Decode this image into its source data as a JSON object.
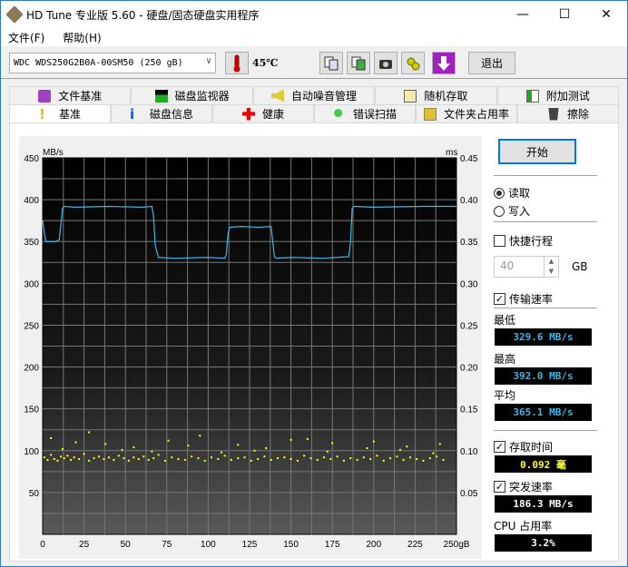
{
  "window": {
    "title": "HD Tune 专业版 5.60 - 硬盘/固态硬盘实用程序",
    "minimize": "—",
    "maximize": "☐",
    "close": "✕"
  },
  "menu": [
    "文件(F)",
    "帮助(H)"
  ],
  "toolbar": {
    "drive": "WDC WDS250G2B0A-00SM50 (250 gB)",
    "temperature": "45℃",
    "exit": "退出",
    "icons": [
      "copy-text-icon",
      "copy-image-icon",
      "camera-icon",
      "settings-icon",
      "download-icon"
    ]
  },
  "tabs": {
    "row1": [
      "文件基准",
      "磁盘监视器",
      "自动噪音管理",
      "随机存取",
      "附加测试"
    ],
    "row2": [
      "基准",
      "磁盘信息",
      "健康",
      "错误扫描",
      "文件夹占用率",
      "擦除"
    ],
    "active": "基准"
  },
  "side": {
    "start": "开始",
    "read": "读取",
    "write": "写入",
    "mode_selected": "read",
    "quick": "快捷行程",
    "quick_checked": false,
    "quick_value": "40",
    "quick_unit": "GB",
    "transfer": "传输速率",
    "transfer_checked": true,
    "min_label": "最低",
    "min": "329.6 MB/s",
    "max_label": "最高",
    "max": "392.0 MB/s",
    "avg_label": "平均",
    "avg": "365.1 MB/s",
    "access": "存取时间",
    "access_checked": true,
    "access_value": "0.092 毫",
    "burst": "突发速率",
    "burst_checked": true,
    "burst_value": "186.3 MB/s",
    "cpu_label": "CPU 占用率",
    "cpu_value": "3.2%"
  },
  "colors": {
    "line": "#3fb6e8",
    "scatter": "#ffff00",
    "value_blue": "#3fb6e8",
    "value_yellow": "#ffff33"
  },
  "chart_data": {
    "type": "line",
    "left_unit": "MB/s",
    "right_unit": "ms",
    "x_unit": "gB",
    "xlim": [
      0,
      250
    ],
    "ylim": [
      0,
      450
    ],
    "y2lim": [
      0,
      0.45
    ],
    "x_ticks": [
      0,
      25,
      50,
      75,
      100,
      125,
      150,
      175,
      200,
      225,
      250
    ],
    "y_ticks": [
      50,
      100,
      150,
      200,
      250,
      300,
      350,
      400,
      450
    ],
    "y2_ticks": [
      "0.05",
      "0.10",
      "0.15",
      "0.20",
      "0.25",
      "0.30",
      "0.35",
      "0.40",
      "0.45"
    ],
    "grid": true,
    "series": [
      {
        "axis": "left",
        "type": "line",
        "x": [
          0,
          1,
          2,
          4,
          8,
          10,
          11,
          12,
          13,
          20,
          40,
          60,
          66,
          67,
          68,
          70,
          80,
          100,
          110,
          111,
          112,
          113,
          120,
          130,
          138,
          139,
          140,
          141,
          150,
          170,
          185,
          186,
          187,
          188,
          200,
          230,
          250
        ],
        "y": [
          375,
          360,
          350,
          350,
          350,
          352,
          370,
          390,
          392,
          391,
          392,
          391,
          392,
          380,
          345,
          331,
          330,
          331,
          330,
          335,
          360,
          367,
          368,
          367,
          368,
          350,
          332,
          330,
          331,
          330,
          332,
          350,
          390,
          392,
          391,
          392,
          392
        ]
      },
      {
        "axis": "right",
        "type": "scatter",
        "x": [
          1,
          3,
          5,
          7,
          9,
          11,
          13,
          15,
          17,
          19,
          22,
          25,
          28,
          31,
          34,
          37,
          40,
          43,
          46,
          49,
          52,
          55,
          58,
          61,
          64,
          67,
          70,
          74,
          78,
          82,
          86,
          90,
          94,
          98,
          102,
          106,
          110,
          114,
          118,
          122,
          126,
          130,
          134,
          138,
          142,
          146,
          150,
          154,
          158,
          162,
          166,
          170,
          174,
          178,
          182,
          186,
          190,
          194,
          198,
          202,
          206,
          210,
          214,
          218,
          222,
          226,
          230,
          234,
          238,
          242,
          5,
          20,
          38,
          55,
          76,
          95,
          118,
          135,
          160,
          175,
          200,
          220,
          240,
          12,
          28,
          48,
          66,
          88,
          108,
          128,
          150,
          172,
          196,
          216,
          236
        ],
        "y": [
          0.092,
          0.089,
          0.095,
          0.09,
          0.088,
          0.093,
          0.091,
          0.094,
          0.089,
          0.092,
          0.09,
          0.096,
          0.088,
          0.091,
          0.093,
          0.09,
          0.092,
          0.089,
          0.094,
          0.091,
          0.088,
          0.092,
          0.09,
          0.093,
          0.089,
          0.091,
          0.095,
          0.088,
          0.092,
          0.09,
          0.089,
          0.093,
          0.091,
          0.088,
          0.092,
          0.09,
          0.094,
          0.089,
          0.091,
          0.092,
          0.088,
          0.09,
          0.093,
          0.089,
          0.091,
          0.092,
          0.09,
          0.088,
          0.094,
          0.091,
          0.089,
          0.092,
          0.09,
          0.093,
          0.088,
          0.091,
          0.089,
          0.092,
          0.09,
          0.094,
          0.088,
          0.091,
          0.093,
          0.089,
          0.092,
          0.09,
          0.088,
          0.091,
          0.093,
          0.089,
          0.115,
          0.11,
          0.108,
          0.104,
          0.112,
          0.118,
          0.107,
          0.103,
          0.114,
          0.109,
          0.111,
          0.105,
          0.108,
          0.102,
          0.122,
          0.101,
          0.099,
          0.106,
          0.098,
          0.1,
          0.113,
          0.099,
          0.103,
          0.101,
          0.097
        ]
      }
    ]
  }
}
